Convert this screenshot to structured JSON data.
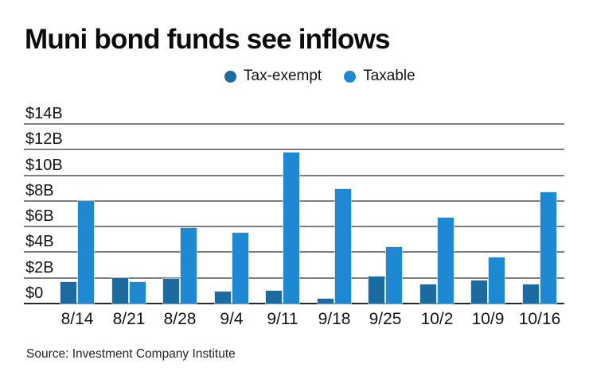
{
  "title": "Muni bond funds see inflows",
  "source": "Source: Investment Company Institute",
  "colors": {
    "tax_exempt": "#1c6ba0",
    "taxable": "#1e88d2",
    "gridline": "#7e7e7e",
    "axis_line": "#2a2a2a",
    "text": "#141414"
  },
  "chart_data": {
    "type": "bar",
    "title": "Muni bond funds see inflows",
    "categories": [
      "8/14",
      "8/21",
      "8/28",
      "9/4",
      "9/11",
      "9/18",
      "9/25",
      "10/2",
      "10/9",
      "10/16"
    ],
    "series": [
      {
        "name": "Tax-exempt",
        "color": "#1c6ba0",
        "values": [
          1.7,
          2.0,
          1.9,
          0.9,
          1.0,
          0.4,
          2.1,
          1.5,
          1.8,
          1.5
        ]
      },
      {
        "name": "Taxable",
        "color": "#1e88d2",
        "values": [
          8.0,
          1.7,
          5.9,
          5.5,
          11.8,
          8.9,
          4.4,
          6.7,
          3.6,
          8.7
        ]
      }
    ],
    "xlabel": "",
    "ylabel": "",
    "unit": "billions USD",
    "ylim": [
      0,
      14
    ],
    "ytick_step": 2,
    "ytick_labels": [
      "$0",
      "$2B",
      "$4B",
      "$6B",
      "$8B",
      "$10B",
      "$12B",
      "$14B"
    ],
    "grid": true,
    "legend_position": "top"
  }
}
